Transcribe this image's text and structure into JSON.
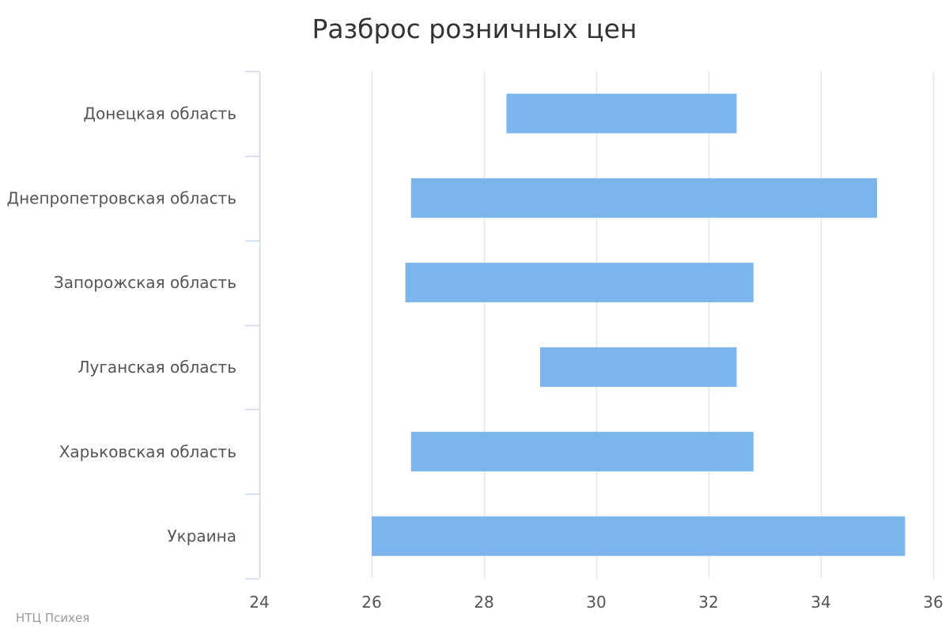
{
  "chart_data": {
    "type": "bar",
    "orientation": "horizontal",
    "title": "Разброс розничных цен",
    "xlabel": "",
    "ylabel": "",
    "categories": [
      "Донецкая область",
      "Днепропетровская область",
      "Запорожская область",
      "Луганская область",
      "Харьковская область",
      "Украина"
    ],
    "series": [
      {
        "low": [
          28.4,
          26.7,
          26.6,
          29.0,
          26.7,
          26.0
        ],
        "high": [
          32.5,
          35.0,
          32.8,
          32.5,
          32.8,
          35.5
        ]
      }
    ],
    "xlim": [
      24,
      36
    ],
    "xticks": [
      "24",
      "26",
      "28",
      "30",
      "32",
      "34",
      "36"
    ],
    "grid": true,
    "legend": "none",
    "bar_color": "#7cb5ec",
    "grid_color": "#e6e6e6",
    "axis_color": "#ccd6eb"
  },
  "credits": "НТЦ Психея"
}
